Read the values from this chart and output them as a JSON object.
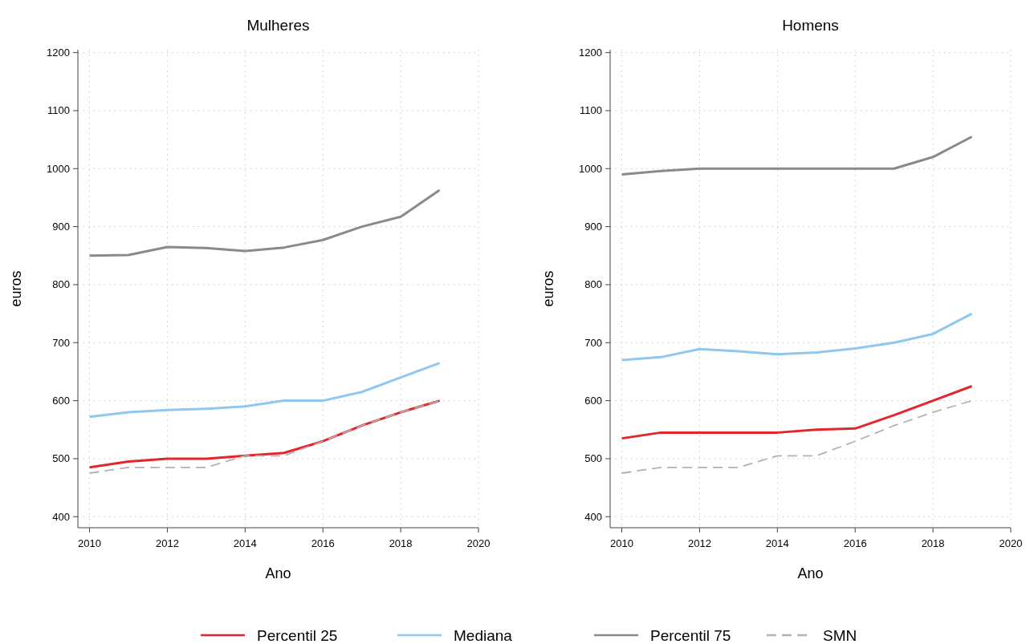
{
  "chart_data": [
    {
      "type": "line",
      "title": "Mulheres",
      "xlabel": "Ano",
      "ylabel": "euros",
      "x": [
        2010,
        2011,
        2012,
        2013,
        2014,
        2015,
        2016,
        2017,
        2018,
        2019
      ],
      "xlim": [
        2009.7,
        2020
      ],
      "xticks": [
        2010,
        2012,
        2014,
        2016,
        2018,
        2020
      ],
      "ylim": [
        381,
        1205
      ],
      "yticks": [
        400,
        500,
        600,
        700,
        800,
        900,
        1000,
        1100,
        1200
      ],
      "grid": true,
      "legend": "bottom",
      "series": [
        {
          "name": "Percentil 25",
          "color": "#e3262b",
          "line_style": "solid",
          "values": [
            485,
            495,
            500,
            500,
            505,
            510,
            530,
            557,
            580,
            600
          ]
        },
        {
          "name": "Mediana",
          "color": "#8ec8ef",
          "line_style": "solid",
          "values": [
            572,
            580,
            584,
            586,
            590,
            600,
            600,
            615,
            640,
            665
          ]
        },
        {
          "name": "Percentil 75",
          "color": "#8a8a8a",
          "line_style": "solid",
          "values": [
            850,
            851,
            865,
            863,
            858,
            864,
            877,
            900,
            917,
            963
          ]
        },
        {
          "name": "SMN",
          "color": "#b2b2b2",
          "line_style": "dashed",
          "values": [
            475,
            485,
            485,
            485,
            505,
            505,
            530,
            557,
            580,
            600
          ]
        }
      ]
    },
    {
      "type": "line",
      "title": "Homens",
      "xlabel": "Ano",
      "ylabel": "euros",
      "x": [
        2010,
        2011,
        2012,
        2013,
        2014,
        2015,
        2016,
        2017,
        2018,
        2019
      ],
      "xlim": [
        2009.7,
        2020
      ],
      "xticks": [
        2010,
        2012,
        2014,
        2016,
        2018,
        2020
      ],
      "ylim": [
        381,
        1205
      ],
      "yticks": [
        400,
        500,
        600,
        700,
        800,
        900,
        1000,
        1100,
        1200
      ],
      "grid": true,
      "series": [
        {
          "color": "#e3262b",
          "line_style": "solid",
          "values": [
            535,
            545,
            545,
            545,
            545,
            550,
            552,
            575,
            600,
            625
          ]
        },
        {
          "color": "#8ec8ef",
          "line_style": "solid",
          "values": [
            670,
            675,
            689,
            685,
            680,
            683,
            690,
            700,
            715,
            750
          ]
        },
        {
          "color": "#8a8a8a",
          "line_style": "solid",
          "values": [
            990,
            996,
            1000,
            1000,
            1000,
            1000,
            1000,
            1000,
            1020,
            1055
          ]
        },
        {
          "color": "#b2b2b2",
          "line_style": "dashed",
          "values": [
            475,
            485,
            485,
            485,
            505,
            505,
            530,
            557,
            580,
            600
          ]
        }
      ]
    }
  ]
}
